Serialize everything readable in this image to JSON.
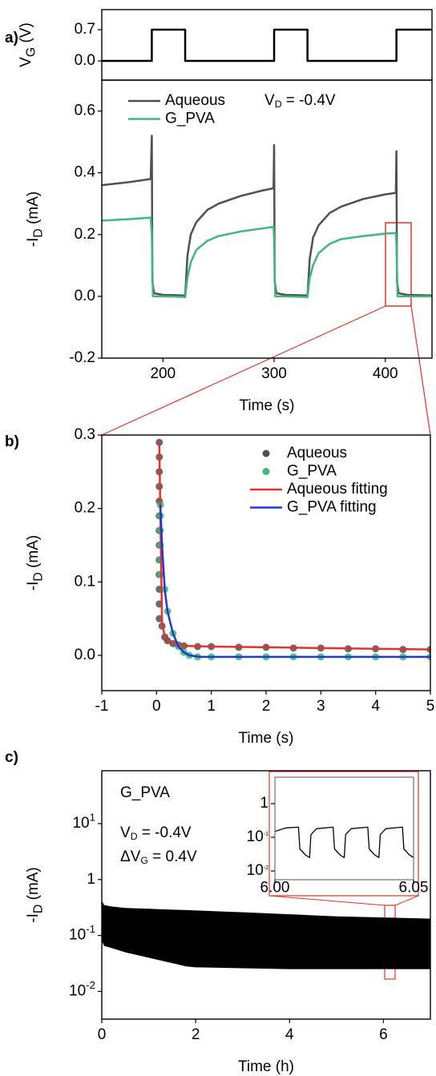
{
  "chart_data": [
    {
      "type": "line",
      "panel_label": "a)",
      "ylabel": [
        "V",
        "G",
        " (V)"
      ],
      "xlim": [
        145,
        442
      ],
      "ylim": [
        -0.43,
        1.15
      ],
      "yticks": [
        {
          "value": 0,
          "label": "0.0"
        },
        0.7
      ],
      "series": [
        {
          "color": "#000000",
          "x": [
            145,
            190,
            190,
            220,
            220,
            300,
            300,
            330,
            330,
            410,
            410,
            442
          ],
          "values": [
            0,
            0,
            0.7,
            0.7,
            0,
            0,
            0.7,
            0.7,
            0,
            0,
            0.7,
            0.7
          ]
        }
      ]
    },
    {
      "type": "line",
      "ylabel": [
        "-I",
        "D",
        " (mA)"
      ],
      "xlabel": "Time (s)",
      "annotations": [
        [
          "V",
          "D",
          " = -0.4V"
        ]
      ],
      "xlim": [
        145,
        442
      ],
      "xticks": [
        200,
        300,
        400
      ],
      "ylim": [
        -0.2,
        0.7
      ],
      "yticks": [
        -0.2,
        {
          "value": 0,
          "label": "0.0"
        },
        0.2,
        0.4,
        0.6
      ],
      "series": [
        {
          "name": "Aqueous",
          "color": "#505050",
          "x": [
            145,
            170,
            189,
            190,
            190.5,
            192,
            200,
            219,
            220,
            222,
            225,
            230,
            240,
            250,
            270,
            290,
            299.5,
            300,
            300.5,
            302,
            310,
            329,
            330,
            332,
            335,
            340,
            350,
            360,
            380,
            400,
            409.5,
            410,
            410.5,
            412,
            420,
            442
          ],
          "values": [
            0.36,
            0.37,
            0.38,
            0.52,
            0.05,
            0.01,
            0.005,
            0.003,
            0,
            0.13,
            0.2,
            0.24,
            0.28,
            0.3,
            0.325,
            0.343,
            0.35,
            0.49,
            0.05,
            0.01,
            0.005,
            0.003,
            0,
            0.12,
            0.19,
            0.23,
            0.27,
            0.29,
            0.315,
            0.33,
            0.335,
            0.47,
            0.05,
            0.01,
            0.005,
            0.003
          ]
        },
        {
          "name": "G_PVA",
          "color": "#3cb878",
          "x": [
            145,
            170,
            189,
            190,
            191,
            200,
            219,
            220,
            222,
            225,
            230,
            240,
            250,
            270,
            290,
            299.5,
            300,
            301,
            310,
            329,
            330,
            332,
            335,
            340,
            350,
            360,
            380,
            400,
            409.5,
            410,
            411,
            420,
            442
          ],
          "values": [
            0.245,
            0.25,
            0.255,
            0.2,
            0.0,
            0,
            -0.002,
            -0.003,
            0.06,
            0.11,
            0.15,
            0.18,
            0.195,
            0.21,
            0.22,
            0.225,
            0.18,
            0.0,
            0,
            -0.002,
            -0.003,
            0.06,
            0.1,
            0.14,
            0.17,
            0.185,
            0.195,
            0.203,
            0.205,
            0.17,
            0.0,
            0,
            0
          ]
        }
      ]
    },
    {
      "type": "scatter",
      "panel_label": "b)",
      "ylabel": [
        "-I",
        "D",
        " (mA)"
      ],
      "xlabel": "Time (s)",
      "xlim": [
        -1,
        5
      ],
      "xticks": [
        -1,
        0,
        1,
        2,
        3,
        4,
        5
      ],
      "ylim": [
        -0.048,
        0.3
      ],
      "yticks": [
        {
          "value": 0,
          "label": "0.0"
        },
        0.1,
        0.2,
        0.3
      ],
      "series": [
        {
          "name": "Aqueous",
          "type": "scatter",
          "color": "#505050",
          "x": [
            0.05,
            0.05,
            0.05,
            0.05,
            0.05,
            0.05,
            0.05,
            0.05,
            0.05,
            0.05,
            0.05,
            0.05,
            0.05,
            0.1,
            0.15,
            0.2,
            0.3,
            0.4,
            0.5,
            0.75,
            1,
            1.5,
            2,
            2.5,
            3,
            3.5,
            4,
            4.5,
            5
          ],
          "values": [
            0.29,
            0.27,
            0.25,
            0.23,
            0.21,
            0.19,
            0.17,
            0.15,
            0.13,
            0.11,
            0.09,
            0.07,
            0.05,
            0.04,
            0.025,
            0.02,
            0.016,
            0.014,
            0.013,
            0.012,
            0.012,
            0.011,
            0.011,
            0.01,
            0.01,
            0.009,
            0.009,
            0.008,
            0.008
          ]
        },
        {
          "name": "G_PVA",
          "type": "scatter",
          "color": "#3cb878",
          "x": [
            0.07,
            0.07,
            0.07,
            0.07,
            0.07,
            0.07,
            0.15,
            0.2,
            0.3,
            0.4,
            0.5,
            0.6,
            0.75,
            1,
            1.5,
            2,
            2.5,
            3,
            3.5,
            4,
            4.5,
            5
          ],
          "values": [
            0.205,
            0.19,
            0.17,
            0.15,
            0.13,
            0.11,
            0.09,
            0.06,
            0.03,
            0.012,
            0.004,
            0,
            -0.002,
            -0.002,
            -0.002,
            -0.002,
            -0.002,
            -0.002,
            -0.002,
            -0.002,
            -0.002,
            -0.002
          ]
        },
        {
          "name": "Aqueous fitting",
          "type": "line",
          "color": "#e8302a",
          "x": [
            0.05,
            0.1,
            0.15,
            0.2,
            0.3,
            0.4,
            0.5,
            1,
            2,
            3,
            4,
            5
          ],
          "values": [
            0.29,
            0.045,
            0.025,
            0.02,
            0.016,
            0.014,
            0.013,
            0.012,
            0.011,
            0.01,
            0.009,
            0.008
          ]
        },
        {
          "name": "G_PVA fitting",
          "type": "line",
          "color": "#1c3ad6",
          "x": [
            0.07,
            0.1,
            0.15,
            0.2,
            0.3,
            0.4,
            0.5,
            0.6,
            0.8,
            1,
            2,
            3,
            4,
            5
          ],
          "values": [
            0.205,
            0.15,
            0.09,
            0.06,
            0.03,
            0.012,
            0.004,
            0,
            -0.002,
            -0.002,
            -0.002,
            -0.002,
            -0.002,
            -0.002
          ]
        }
      ]
    },
    {
      "type": "band",
      "panel_label": "c)",
      "ylabel": [
        "-I",
        "D",
        " (mA)"
      ],
      "xlabel": "Time (h)",
      "annotations": [
        [
          "G_PVA"
        ],
        [
          "V",
          "D",
          " = -0.4V"
        ],
        [
          "ΔV",
          "G",
          " = 0.4V"
        ]
      ],
      "log_y": true,
      "xlim": [
        0,
        7
      ],
      "xticks": [
        0,
        2,
        4,
        6
      ],
      "ylim": [
        0.0032,
        88
      ],
      "yticks": [
        {
          "value": 0.01,
          "label": "10",
          "exponent": "-2"
        },
        {
          "value": 0.1,
          "label": "10",
          "exponent": "-1"
        },
        1,
        {
          "value": 10,
          "label": "10",
          "exponent": "1"
        }
      ],
      "series": [
        {
          "color": "#000000",
          "x": [
            0,
            0.05,
            0.2,
            0.5,
            1,
            1.5,
            1.8,
            2,
            3,
            4,
            5,
            6,
            7
          ],
          "upper": [
            0.42,
            0.35,
            0.33,
            0.31,
            0.3,
            0.29,
            0.285,
            0.28,
            0.26,
            0.24,
            0.22,
            0.21,
            0.2
          ],
          "lower": [
            0.08,
            0.065,
            0.06,
            0.05,
            0.04,
            0.032,
            0.028,
            0.027,
            0.026,
            0.025,
            0.025,
            0.025,
            0.025
          ]
        }
      ]
    },
    {
      "type": "line",
      "log_y": true,
      "xlim": [
        6.0,
        6.05
      ],
      "xticks": [
        {
          "value": 6,
          "label": "6.00"
        },
        {
          "value": 6.05,
          "label": "6.05"
        }
      ],
      "ylim": [
        0.0055,
        6.1
      ],
      "yticks": [
        {
          "value": 0.01,
          "label": "10",
          "exponent": "-2"
        },
        {
          "value": 0.1,
          "label": "10",
          "exponent": "-1"
        },
        1
      ],
      "series": [
        {
          "color": "#000000",
          "x": [
            6.0,
            6.004,
            6.0085,
            6.009,
            6.011,
            6.0125,
            6.013,
            6.015,
            6.021,
            6.0215,
            6.0235,
            6.025,
            6.0255,
            6.0275,
            6.0335,
            6.034,
            6.036,
            6.0375,
            6.038,
            6.04,
            6.046,
            6.0465,
            6.0485,
            6.05
          ],
          "values": [
            0.15,
            0.19,
            0.2,
            0.045,
            0.03,
            0.025,
            0.12,
            0.18,
            0.2,
            0.045,
            0.03,
            0.025,
            0.12,
            0.18,
            0.2,
            0.045,
            0.03,
            0.025,
            0.12,
            0.18,
            0.2,
            0.045,
            0.03,
            0.025
          ]
        }
      ]
    }
  ]
}
